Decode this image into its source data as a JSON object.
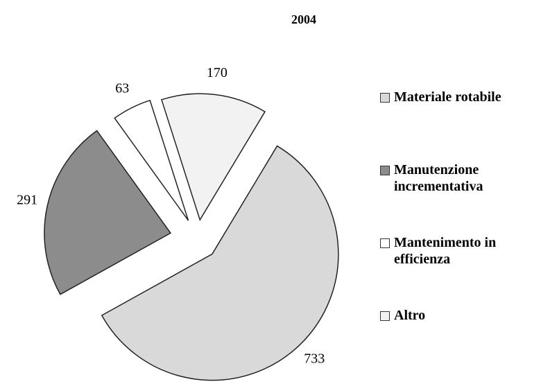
{
  "chart_data": {
    "type": "pie",
    "title": "2004",
    "categories": [
      "Materiale rotabile",
      "Manutenzione incrementativa",
      "Mantenimento in efficienza",
      "Altro"
    ],
    "values": [
      733,
      291,
      63,
      170
    ],
    "colors": [
      "#d9d9d9",
      "#8c8c8c",
      "#ffffff",
      "#f2f2f2"
    ],
    "legend": "right"
  }
}
